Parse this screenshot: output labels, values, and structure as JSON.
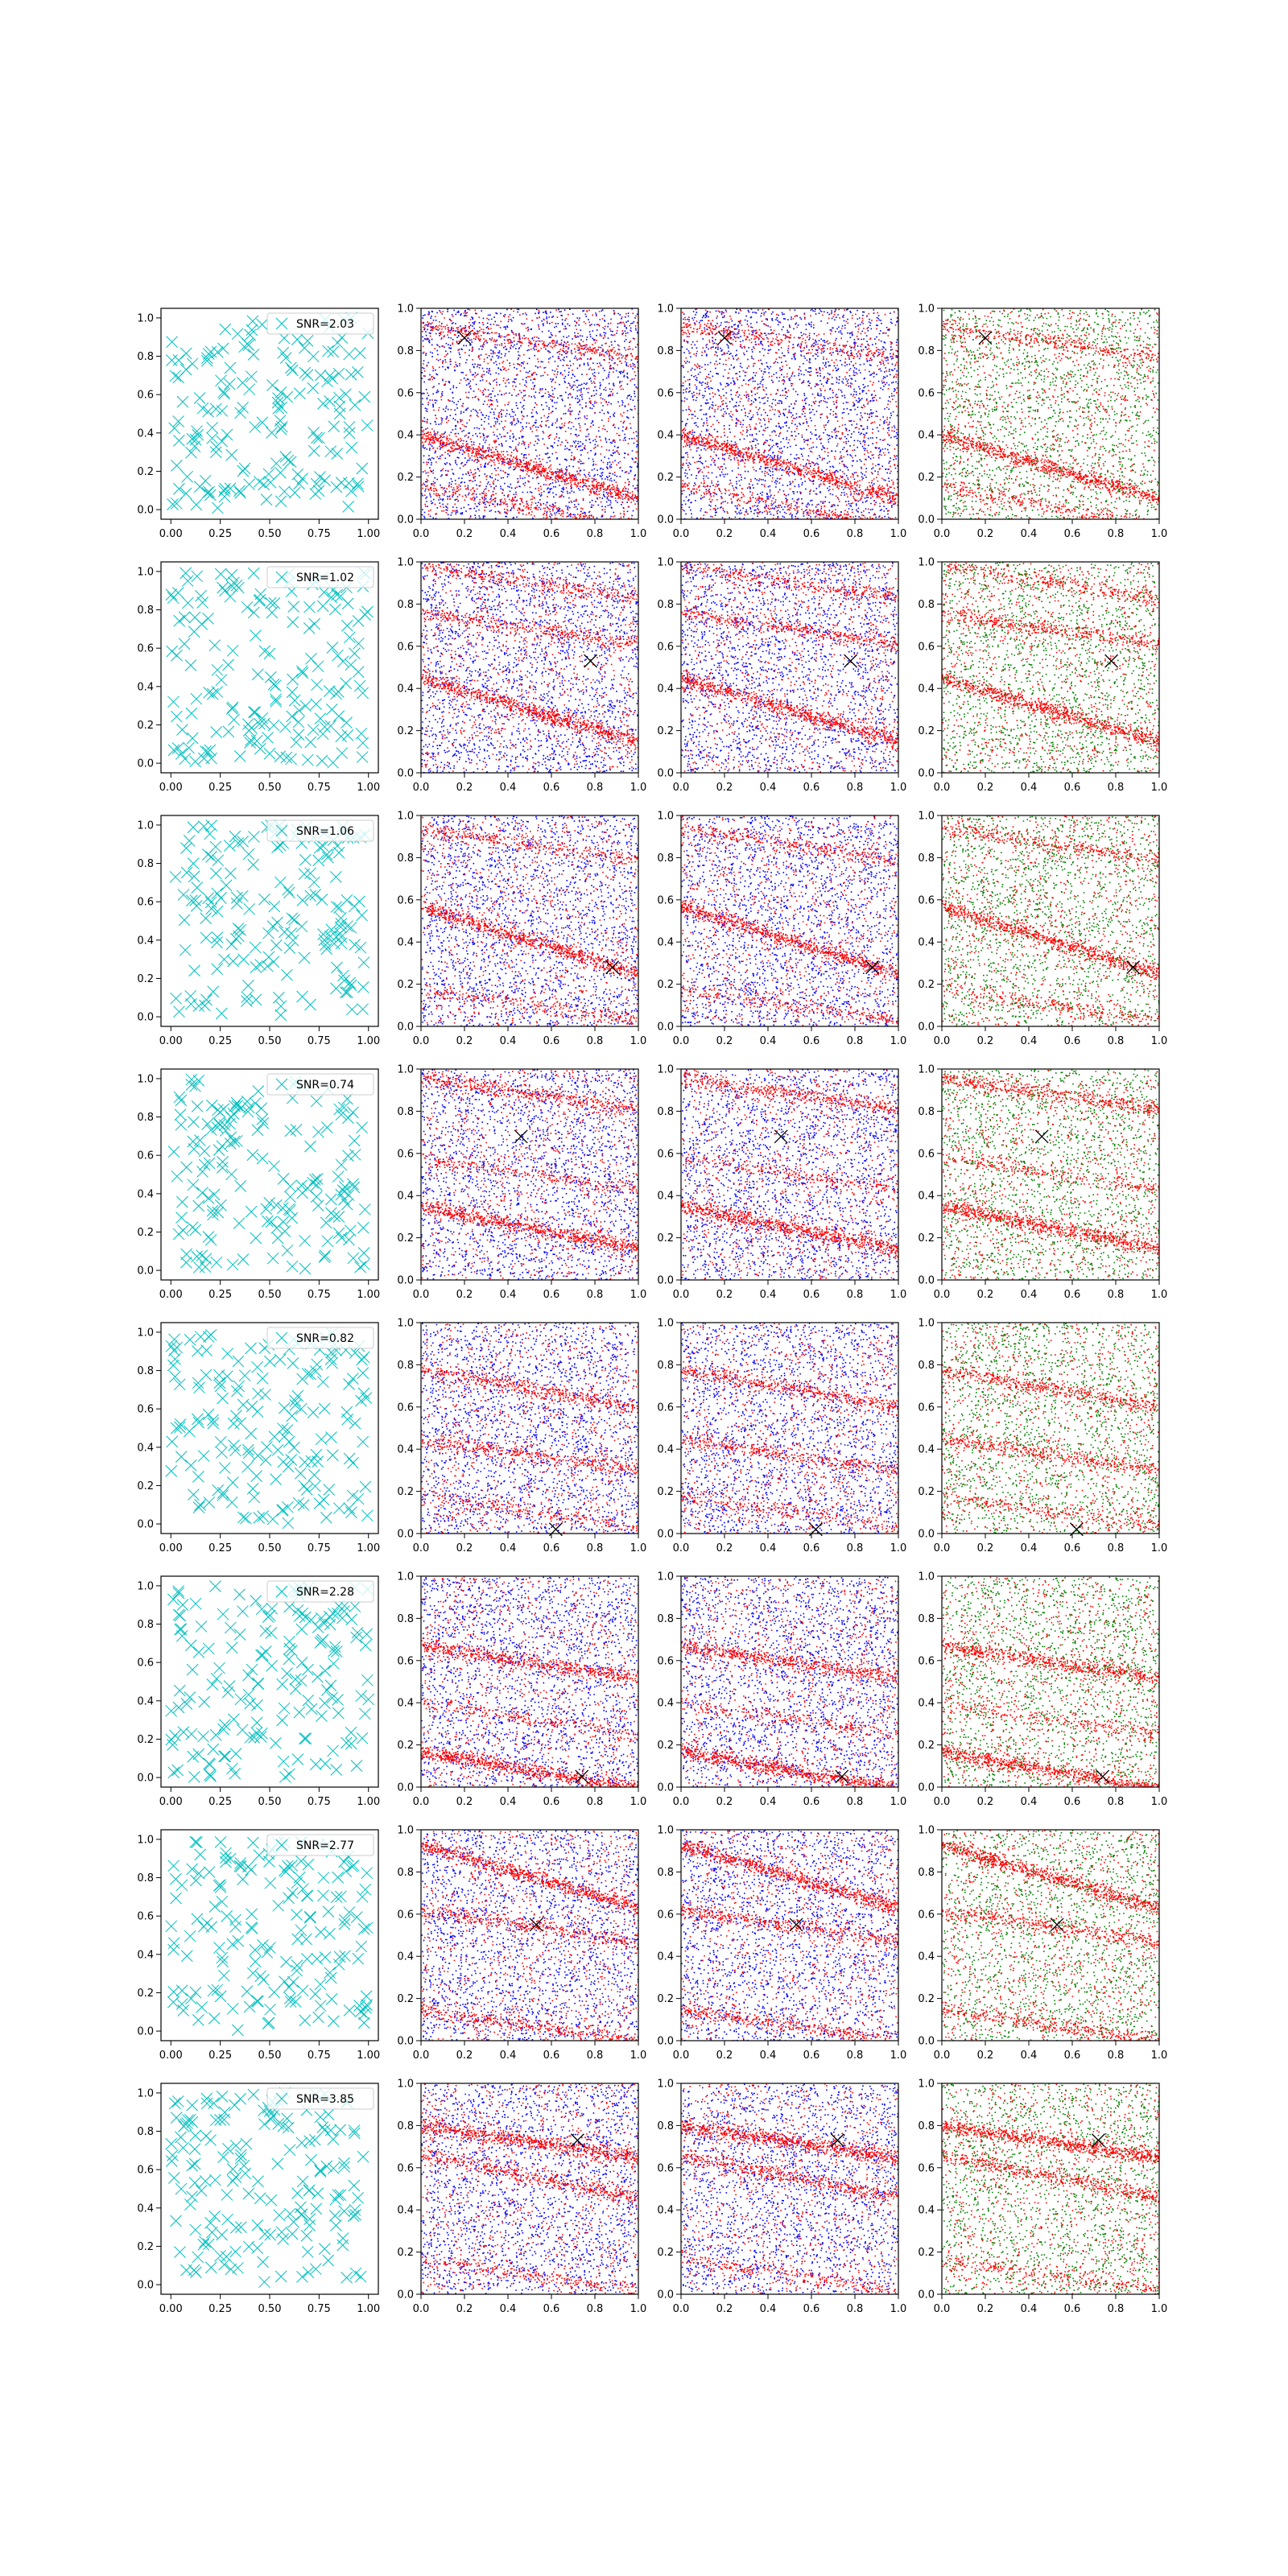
{
  "figure": {
    "columns": 4,
    "colors": {
      "scatter_marker": "#00bfbf",
      "noise": "#0000ff",
      "signal": "#ff0000",
      "alt_noise": "#008000",
      "target_marker": "#000000",
      "axes": "#000000",
      "background": "#ffffff"
    }
  },
  "chart_data": [
    {
      "type": "scatter",
      "row": 1,
      "legend": "SNR=2.03",
      "legend_loc": "upper-right",
      "target": [
        0.2,
        0.86
      ],
      "bands": [
        {
          "slope": -0.3,
          "intercept": 0.4,
          "strong": 1.0
        },
        {
          "slope": -0.2,
          "intercept": 0.16,
          "strong": 0.4
        },
        {
          "slope": -0.15,
          "intercept": 0.92,
          "strong": 0.4
        }
      ]
    },
    {
      "type": "scatter",
      "row": 2,
      "legend": "SNR=1.02",
      "legend_loc": "upper-right",
      "target": [
        0.78,
        0.53
      ],
      "bands": [
        {
          "slope": -0.3,
          "intercept": 0.45,
          "strong": 1.0
        },
        {
          "slope": -0.15,
          "intercept": 0.76,
          "strong": 0.5
        },
        {
          "slope": -0.15,
          "intercept": 0.98,
          "strong": 0.4
        }
      ]
    },
    {
      "type": "scatter",
      "row": 3,
      "legend": "SNR=1.06",
      "legend_loc": "upper-right",
      "target": [
        0.88,
        0.28
      ],
      "bands": [
        {
          "slope": -0.32,
          "intercept": 0.57,
          "strong": 1.0
        },
        {
          "slope": -0.15,
          "intercept": 0.94,
          "strong": 0.4
        },
        {
          "slope": -0.15,
          "intercept": 0.18,
          "strong": 0.3
        }
      ]
    },
    {
      "type": "scatter",
      "row": 4,
      "legend": "SNR=0.74",
      "legend_loc": "upper-right",
      "target": [
        0.46,
        0.68
      ],
      "bands": [
        {
          "slope": -0.2,
          "intercept": 0.35,
          "strong": 1.0
        },
        {
          "slope": -0.15,
          "intercept": 0.96,
          "strong": 0.6
        },
        {
          "slope": -0.15,
          "intercept": 0.58,
          "strong": 0.3
        }
      ]
    },
    {
      "type": "scatter",
      "row": 5,
      "legend": "SNR=0.82",
      "legend_loc": "upper-right",
      "target": [
        0.62,
        0.02
      ],
      "bands": [
        {
          "slope": -0.18,
          "intercept": 0.78,
          "strong": 0.6
        },
        {
          "slope": -0.15,
          "intercept": 0.45,
          "strong": 0.5
        },
        {
          "slope": -0.15,
          "intercept": 0.18,
          "strong": 0.3
        }
      ]
    },
    {
      "type": "scatter",
      "row": 6,
      "legend": "SNR=2.28",
      "legend_loc": "upper-right",
      "target": [
        0.74,
        0.05
      ],
      "bands": [
        {
          "slope": -0.18,
          "intercept": 0.17,
          "strong": 1.0
        },
        {
          "slope": -0.15,
          "intercept": 0.67,
          "strong": 0.8
        },
        {
          "slope": -0.15,
          "intercept": 0.4,
          "strong": 0.3
        }
      ]
    },
    {
      "type": "scatter",
      "row": 7,
      "legend": "SNR=2.77",
      "legend_loc": "upper-right",
      "target": [
        0.53,
        0.55
      ],
      "bands": [
        {
          "slope": -0.3,
          "intercept": 0.93,
          "strong": 1.0
        },
        {
          "slope": -0.15,
          "intercept": 0.62,
          "strong": 0.5
        },
        {
          "slope": -0.15,
          "intercept": 0.15,
          "strong": 0.5
        }
      ]
    },
    {
      "type": "scatter",
      "row": 8,
      "legend": "SNR=3.85",
      "legend_loc": "upper-right",
      "target": [
        0.72,
        0.73
      ],
      "bands": [
        {
          "slope": -0.15,
          "intercept": 0.8,
          "strong": 1.0
        },
        {
          "slope": -0.2,
          "intercept": 0.66,
          "strong": 0.6
        },
        {
          "slope": -0.15,
          "intercept": 0.17,
          "strong": 0.3
        }
      ]
    }
  ],
  "axes": {
    "col1_xticks": [
      0.0,
      0.25,
      0.5,
      0.75,
      1.0
    ],
    "col1_xlabels": [
      "0.00",
      "0.25",
      "0.50",
      "0.75",
      "1.00"
    ],
    "col1_yticks": [
      0.0,
      0.2,
      0.4,
      0.6,
      0.8,
      1.0
    ],
    "col1_ylabels": [
      "0.0",
      "0.2",
      "0.4",
      "0.6",
      "0.8",
      "1.0"
    ],
    "col1_xlim": [
      -0.05,
      1.05
    ],
    "col1_ylim": [
      -0.05,
      1.05
    ],
    "field_ticks": [
      0.0,
      0.2,
      0.4,
      0.6,
      0.8,
      1.0
    ],
    "field_labels": [
      "0.0",
      "0.2",
      "0.4",
      "0.6",
      "0.8",
      "1.0"
    ],
    "field_xlim": [
      0.0,
      1.0
    ],
    "field_ylim": [
      0.0,
      1.0
    ],
    "grid": false
  }
}
